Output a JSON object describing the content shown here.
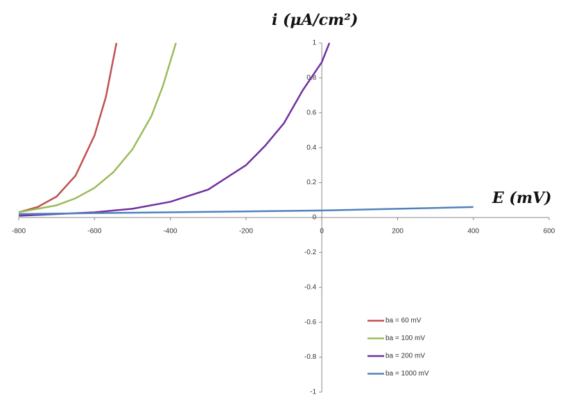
{
  "chart_data": {
    "type": "line",
    "x_label": "E (mV)",
    "y_label": "i (μA/cm²)",
    "xlim": [
      -800,
      600
    ],
    "ylim": [
      -1,
      1
    ],
    "xticks": [
      -800,
      -600,
      -400,
      -200,
      0,
      200,
      400,
      600
    ],
    "yticks": [
      -1,
      -0.8,
      -0.6,
      -0.4,
      -0.2,
      0,
      0.2,
      0.4,
      0.6,
      0.8,
      1
    ],
    "legend": "lower-right",
    "series": [
      {
        "name": "ba = 60 mV",
        "color": "#c0504d",
        "x": [
          -800,
          -750,
          -700,
          -650,
          -600,
          -570,
          -542
        ],
        "values": [
          0.03,
          0.06,
          0.12,
          0.24,
          0.47,
          0.69,
          1.0
        ]
      },
      {
        "name": "ba = 100 mV",
        "color": "#9bbb59",
        "x": [
          -800,
          -750,
          -700,
          -650,
          -600,
          -550,
          -500,
          -450,
          -420,
          -385
        ],
        "values": [
          0.03,
          0.05,
          0.07,
          0.11,
          0.17,
          0.26,
          0.39,
          0.58,
          0.75,
          1.0
        ]
      },
      {
        "name": "ba = 200 mV",
        "color": "#7030a0",
        "x": [
          -800,
          -700,
          -600,
          -500,
          -400,
          -300,
          -200,
          -150,
          -100,
          -50,
          0,
          20
        ],
        "values": [
          0.01,
          0.02,
          0.03,
          0.05,
          0.09,
          0.16,
          0.3,
          0.41,
          0.54,
          0.73,
          0.89,
          1.0
        ]
      },
      {
        "name": "ba = 1000 mV",
        "color": "#4f81bd",
        "x": [
          -800,
          -400,
          0,
          400
        ],
        "values": [
          0.02,
          0.03,
          0.04,
          0.06
        ]
      }
    ]
  }
}
